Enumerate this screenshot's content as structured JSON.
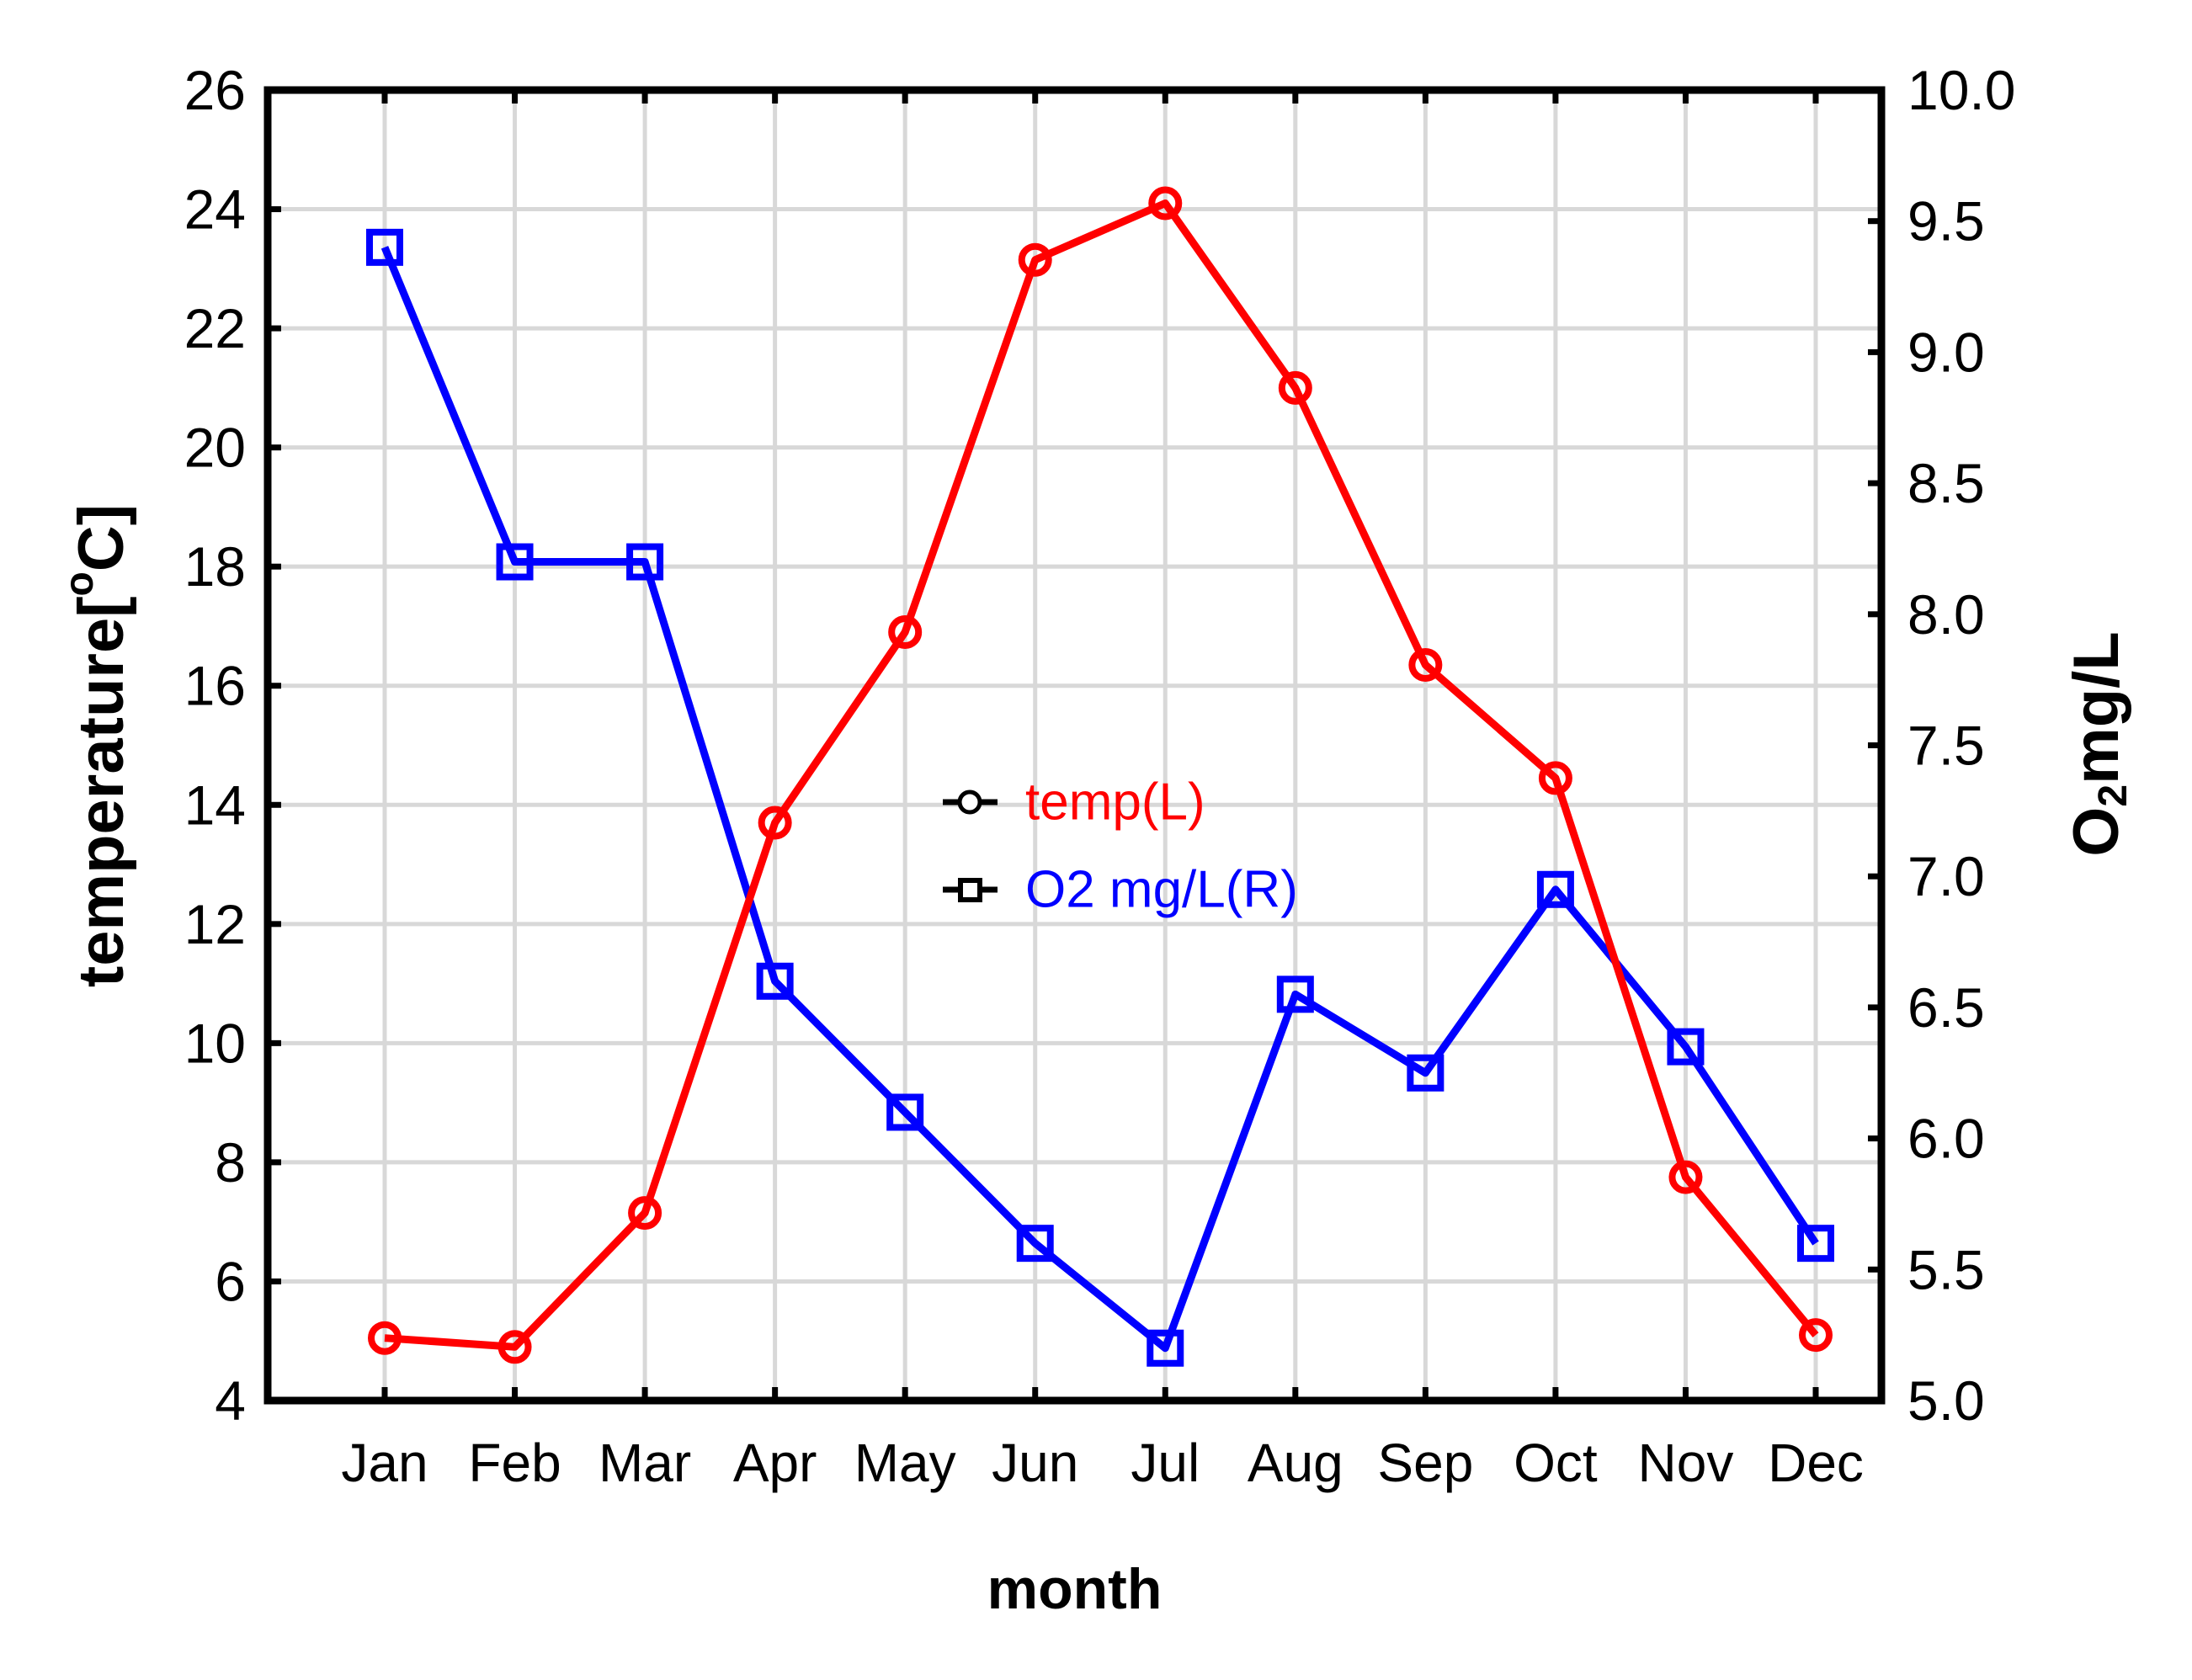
{
  "chart_data": {
    "type": "line",
    "categories": [
      "Jan",
      "Feb",
      "Mar",
      "Apr",
      "May",
      "Jun",
      "Jul",
      "Aug",
      "Sep",
      "Oct",
      "Nov",
      "Dec"
    ],
    "series": [
      {
        "name": "temp(L)",
        "axis": "left",
        "marker": "circle",
        "color": "#ff0000",
        "values": [
          5.05,
          4.9,
          7.15,
          13.7,
          16.9,
          23.15,
          24.1,
          21.0,
          16.35,
          14.45,
          7.75,
          5.1
        ]
      },
      {
        "name": "O2 mg/L(R)",
        "axis": "right",
        "marker": "square",
        "color": "#0000ff",
        "values": [
          9.4,
          8.2,
          8.2,
          6.6,
          6.1,
          5.6,
          5.2,
          6.55,
          6.25,
          6.95,
          6.35,
          5.6
        ]
      }
    ],
    "left_axis": {
      "title_prefix": "temperature[",
      "title_superscript": "o",
      "title_suffix": "C]",
      "min": 4,
      "max": 26,
      "step": 2,
      "tick_labels": [
        "26",
        "24",
        "22",
        "20",
        "18",
        "16",
        "14",
        "12",
        "10",
        "8",
        "6",
        "4"
      ]
    },
    "right_axis": {
      "title_main": "O",
      "title_subscript": "2",
      "title_suffix": "mg/L",
      "min": 5,
      "max": 10,
      "step": 0.5,
      "tick_labels": [
        "10.0",
        "9.5",
        "9.0",
        "8.5",
        "8.0",
        "7.5",
        "7.0",
        "6.5",
        "6.0",
        "5.5",
        "5.0"
      ]
    },
    "x_axis": {
      "title": "month",
      "tick_labels": [
        "Jan",
        "Feb",
        "Mar",
        "Apr",
        "May",
        "Jun",
        "Jul",
        "Aug",
        "Sep",
        "Oct",
        "Nov",
        "Dec"
      ]
    },
    "legend": {
      "position": "center",
      "items": [
        {
          "label": "temp(L)",
          "label_color": "#ff0000",
          "marker": "circle",
          "marker_color": "#000000"
        },
        {
          "label": "O2 mg/L(R)",
          "label_color": "#0000ff",
          "marker": "square",
          "marker_color": "#000000"
        }
      ]
    },
    "grid": true,
    "colors": {
      "background": "#ffffff",
      "axis_frame": "#000000",
      "gridline": "#d8d8d8",
      "temp_series": "#ff0000",
      "o2_series": "#0000ff"
    }
  }
}
